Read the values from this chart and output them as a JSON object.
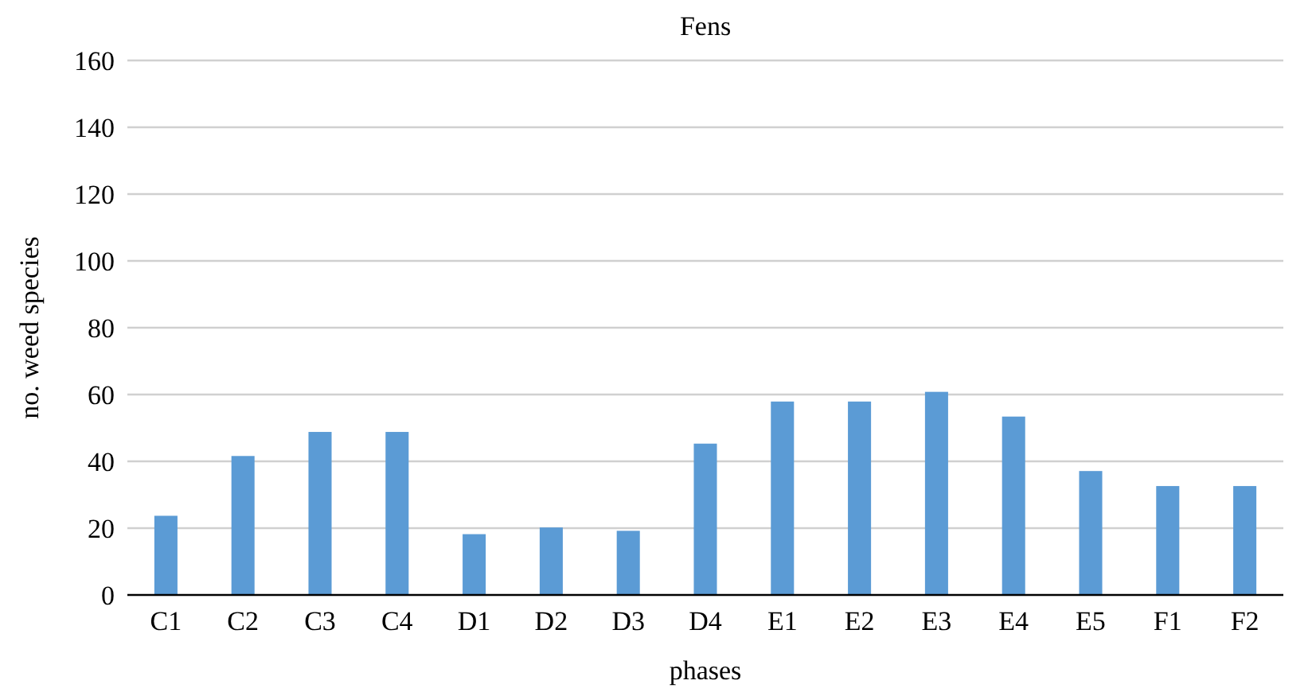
{
  "chart_data": {
    "type": "bar",
    "title": "Fens",
    "xlabel": "phases",
    "ylabel": "no. weed species",
    "categories": [
      "C1",
      "C2",
      "C3",
      "C4",
      "D1",
      "D2",
      "D3",
      "D4",
      "E1",
      "E2",
      "E3",
      "E4",
      "E5",
      "F1",
      "F2"
    ],
    "values": [
      23.7,
      41.6,
      48.8,
      48.8,
      18.2,
      20.2,
      19.2,
      45.3,
      57.9,
      57.9,
      60.8,
      53.4,
      37.1,
      32.6,
      32.6
    ],
    "color": "#5b9bd5",
    "ylim": [
      0,
      160
    ],
    "yticks": [
      0,
      20,
      40,
      60,
      80,
      100,
      120,
      140,
      160
    ],
    "grid": "y"
  }
}
